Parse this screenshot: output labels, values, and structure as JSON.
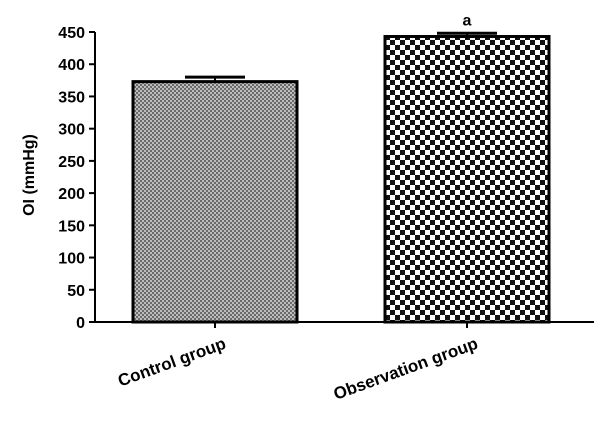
{
  "chart_data": {
    "type": "bar",
    "title": "",
    "xlabel": "",
    "ylabel": "OI (mmHg)",
    "ylim": [
      0,
      450
    ],
    "yticks": [
      0,
      50,
      100,
      150,
      200,
      250,
      300,
      350,
      400,
      450
    ],
    "grid": false,
    "categories": [
      "Control group",
      "Observation group"
    ],
    "values": [
      373,
      443
    ],
    "error_upper": [
      380,
      448
    ],
    "annotations": [
      "",
      "a"
    ],
    "patterns": [
      "fine-grey-crosshatch",
      "black-white-checkerboard"
    ],
    "colors": {
      "axis": "#000000",
      "bar_edge": "#000000",
      "fill_dark": "#000000",
      "fill_light": "#ffffff"
    }
  }
}
